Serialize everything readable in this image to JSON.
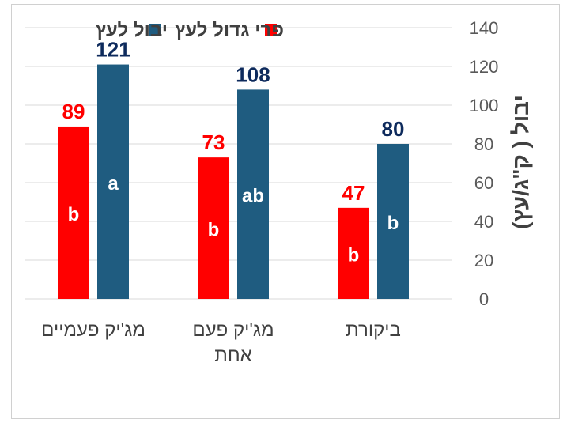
{
  "chart_data": {
    "type": "bar",
    "categories": [
      "מג'יק פעמיים",
      "מג'יק פעם אחת",
      "ביקורת"
    ],
    "category_lines": [
      [
        "מג'יק פעמיים"
      ],
      [
        "מג'יק פעם",
        "אחת"
      ],
      [
        "ביקורת"
      ]
    ],
    "series": [
      {
        "name": "פרי גדול לעץ",
        "color": "#ff0000",
        "values": [
          89,
          73,
          47
        ],
        "letters": [
          "b",
          "b",
          "b"
        ],
        "label_color": "#ff0000"
      },
      {
        "name": "יבול לעץ",
        "color": "#1f5c80",
        "values": [
          121,
          108,
          80
        ],
        "letters": [
          "a",
          "ab",
          "b"
        ],
        "label_color": "#0d2a5c"
      }
    ],
    "ylabel": "יבול ( ק\"ג/עץ)",
    "ylim": [
      0,
      140
    ],
    "yticks": [
      0,
      20,
      40,
      60,
      80,
      100,
      120,
      140
    ],
    "grid": true,
    "legend_position": "top"
  }
}
